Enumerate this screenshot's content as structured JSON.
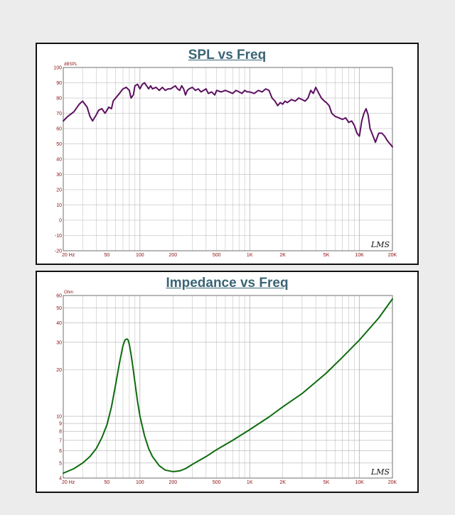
{
  "charts": [
    {
      "title": "SPL vs Freq",
      "unit_label": "dBSPL",
      "logo": "LMS",
      "line_color": "#5c1060",
      "chart_data": {
        "type": "line",
        "title": "SPL vs Freq",
        "xlabel": "",
        "ylabel": "dBSPL",
        "x_scale": "log",
        "xlim": [
          20,
          20000
        ],
        "ylim": [
          -20,
          100
        ],
        "x_ticks": [
          "20 Hz",
          "50",
          "100",
          "200",
          "500",
          "1K",
          "2K",
          "5K",
          "10K",
          "20K"
        ],
        "y_ticks": [
          "100",
          "90",
          "80",
          "70",
          "60",
          "50",
          "40",
          "30",
          "20",
          "10",
          "0",
          "-10",
          "-20"
        ],
        "grid": true,
        "series": [
          {
            "x": [
              20,
              22,
              25,
              28,
              30,
              33,
              35,
              37,
              40,
              42,
              45,
              48,
              50,
              52,
              55,
              57,
              60,
              65,
              70,
              75,
              80,
              83,
              87,
              90,
              95,
              100,
              105,
              110,
              115,
              120,
              125,
              130,
              140,
              150,
              160,
              170,
              180,
              190,
              200,
              210,
              220,
              230,
              240,
              250,
              260,
              270,
              280,
              300,
              320,
              340,
              360,
              380,
              400,
              420,
              450,
              480,
              500,
              550,
              600,
              650,
              700,
              750,
              800,
              850,
              900,
              950,
              1000,
              1100,
              1200,
              1300,
              1400,
              1500,
              1600,
              1700,
              1800,
              1900,
              2000,
              2100,
              2200,
              2400,
              2600,
              2800,
              3000,
              3200,
              3400,
              3600,
              3800,
              4000,
              4200,
              4500,
              4800,
              5000,
              5300,
              5600,
              6000,
              6500,
              7000,
              7500,
              8000,
              8500,
              9000,
              9500,
              10000,
              10500,
              11000,
              11500,
              12000,
              12500,
              13000,
              13500,
              14000,
              15000,
              16000,
              17000,
              18000,
              19000,
              20000
            ],
            "y": [
              65,
              68,
              71,
              76,
              78,
              74,
              68,
              65,
              69,
              72,
              73,
              70,
              72,
              74,
              73,
              78,
              80,
              83,
              86,
              87,
              85,
              80,
              82,
              88,
              89,
              86,
              89,
              90,
              88,
              86,
              88,
              86,
              87,
              85,
              87,
              85,
              86,
              86,
              87,
              88,
              86,
              85,
              88,
              86,
              82,
              85,
              86,
              87,
              85,
              86,
              84,
              85,
              86,
              83,
              84,
              82,
              85,
              84,
              85,
              84,
              83,
              85,
              84,
              83,
              85,
              84,
              84,
              83,
              85,
              84,
              86,
              85,
              80,
              78,
              75,
              77,
              76,
              78,
              77,
              79,
              78,
              80,
              79,
              78,
              80,
              85,
              83,
              87,
              84,
              80,
              78,
              77,
              75,
              70,
              68,
              67,
              66,
              67,
              64,
              65,
              62,
              57,
              55,
              65,
              70,
              73,
              69,
              60,
              57,
              54,
              51,
              57,
              57,
              55,
              52,
              50,
              48
            ]
          }
        ]
      }
    },
    {
      "title": "Impedance vs Freq",
      "unit_label": "Ohm",
      "logo": "LMS",
      "line_color": "#0e6b0e",
      "chart_data": {
        "type": "line",
        "title": "Impedance vs Freq",
        "xlabel": "",
        "ylabel": "Ohm",
        "x_scale": "log",
        "y_scale": "log",
        "xlim": [
          20,
          20000
        ],
        "ylim": [
          4,
          60
        ],
        "x_ticks": [
          "20 Hz",
          "50",
          "100",
          "200",
          "500",
          "1K",
          "2K",
          "5K",
          "10K",
          "20K"
        ],
        "y_ticks": [
          "60",
          "50",
          "40",
          "30",
          "20",
          "10",
          "9",
          "8",
          "7",
          "6",
          "5",
          "4"
        ],
        "grid": true,
        "series": [
          {
            "x": [
              20,
              25,
              30,
              35,
              40,
              45,
              50,
              55,
              60,
              65,
              70,
              73,
              76,
              78,
              80,
              83,
              86,
              90,
              95,
              100,
              110,
              120,
              130,
              150,
              170,
              200,
              230,
              260,
              300,
              400,
              500,
              700,
              1000,
              1500,
              2000,
              3000,
              5000,
              7000,
              10000,
              15000,
              20000
            ],
            "y": [
              4.3,
              4.6,
              5.0,
              5.5,
              6.2,
              7.3,
              8.8,
              11.5,
              16.0,
              22.0,
              28.5,
              31.0,
              31.5,
              31.0,
              29.0,
              25.0,
              21.0,
              16.5,
              12.5,
              10.0,
              7.5,
              6.2,
              5.5,
              4.8,
              4.5,
              4.4,
              4.45,
              4.6,
              4.9,
              5.5,
              6.1,
              7.0,
              8.2,
              9.9,
              11.5,
              14.0,
              19.0,
              24.0,
              31.0,
              43.0,
              57.0
            ]
          }
        ]
      }
    }
  ]
}
